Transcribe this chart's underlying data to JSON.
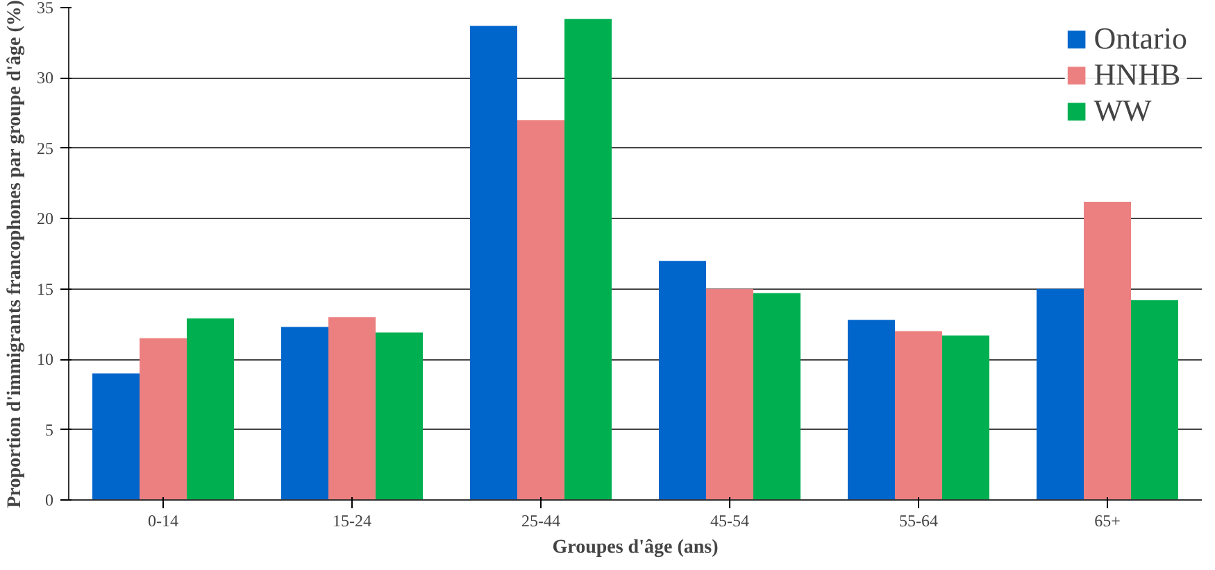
{
  "chart_data": {
    "type": "bar",
    "xlabel": "Groupes d'âge (ans)",
    "ylabel": "Proportion d'immigrants francophones par groupe d'âge (%)",
    "categories": [
      "0-14",
      "15-24",
      "25-44",
      "45-54",
      "55-64",
      "65+"
    ],
    "series": [
      {
        "name": "Ontario",
        "color": "#0066cc",
        "values": [
          9.0,
          12.3,
          33.7,
          17.0,
          12.8,
          15.0
        ]
      },
      {
        "name": "HNHB",
        "color": "#ec8080",
        "values": [
          11.5,
          13.0,
          27.0,
          15.0,
          12.0,
          21.2
        ]
      },
      {
        "name": "WW",
        "color": "#00b050",
        "values": [
          12.9,
          11.9,
          34.2,
          14.7,
          11.7,
          14.2
        ]
      }
    ],
    "ylim": [
      0,
      35
    ],
    "yticks": [
      0,
      5,
      10,
      15,
      20,
      25,
      30,
      35
    ],
    "grid": "y",
    "legend": "top right"
  }
}
